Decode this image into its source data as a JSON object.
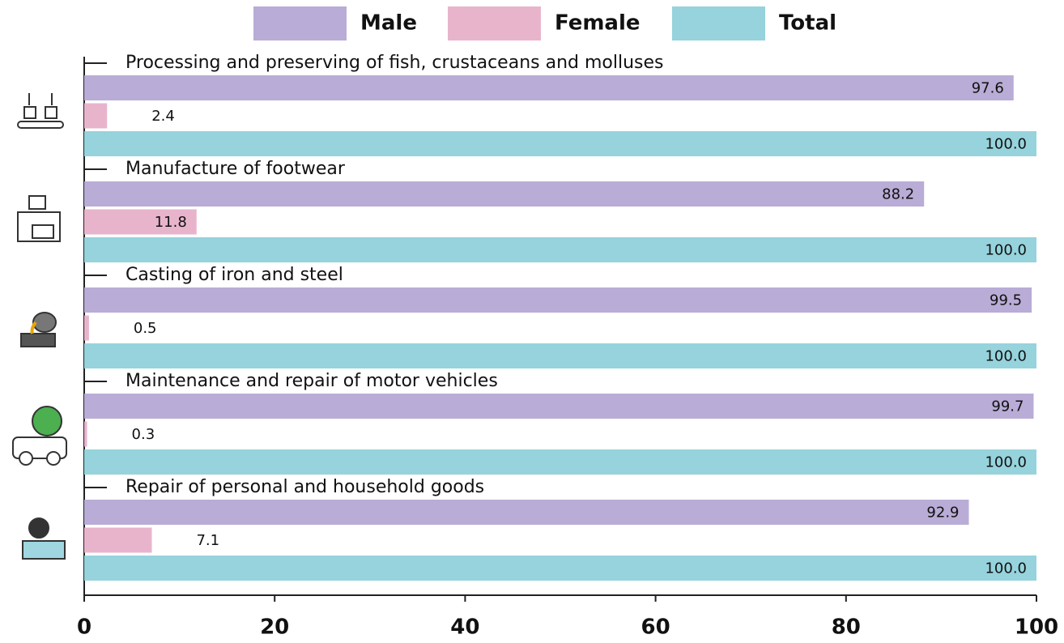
{
  "chart_data": {
    "type": "bar",
    "orientation": "horizontal",
    "categories": [
      "Processing and preserving of fish, crustaceans and molluses",
      "Manufacture of footwear",
      "Casting of iron and steel",
      "Maintenance and repair of motor vehicles",
      "Repair of personal and household goods"
    ],
    "series": [
      {
        "name": "Male",
        "color": "#b9acd6",
        "values": [
          97.6,
          88.2,
          99.5,
          99.7,
          92.9
        ]
      },
      {
        "name": "Female",
        "color": "#e8b4cc",
        "values": [
          2.4,
          11.8,
          0.5,
          0.3,
          7.1
        ]
      },
      {
        "name": "Total",
        "color": "#96d3dc",
        "values": [
          100,
          100,
          100,
          100,
          100
        ],
        "value_labels": [
          "100.0",
          "100.0",
          "100.0",
          "100.0",
          "100.0"
        ]
      }
    ],
    "xlim": [
      0,
      100
    ],
    "xticks": [
      0,
      20,
      40,
      60,
      80,
      100
    ],
    "legend": "top"
  }
}
